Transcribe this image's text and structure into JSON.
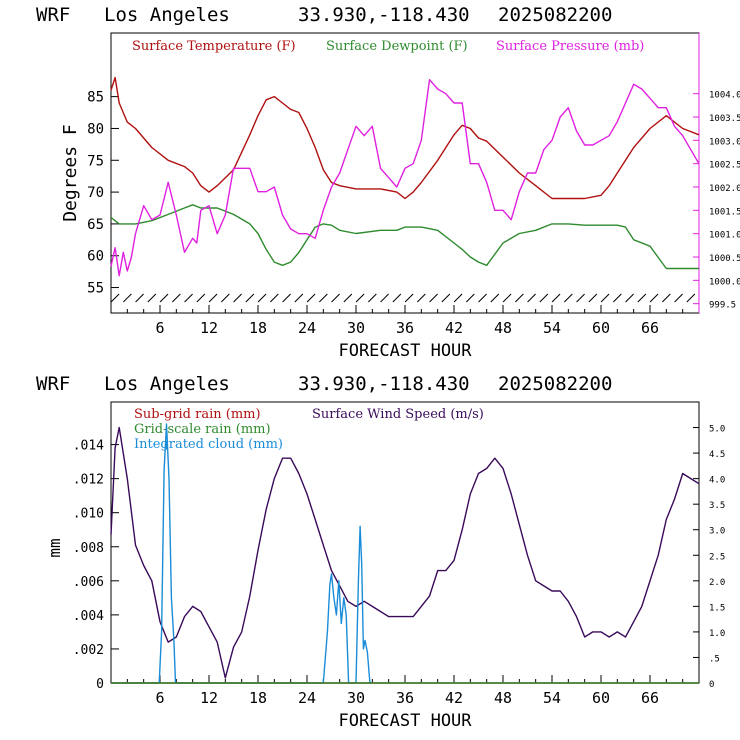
{
  "panels": [
    {
      "title": {
        "model": "WRF",
        "location": "Los Angeles",
        "coords": "33.930,-118.430",
        "run": "2025082200"
      },
      "xlabel": "FORECAST HOUR",
      "ylabel": "Degrees F",
      "legend": [
        {
          "label": "Surface Temperature (F)",
          "color": "#b01010"
        },
        {
          "label": "Surface Dewpoint (F)",
          "color": "#2e8b2e"
        },
        {
          "label": "Surface Pressure (mb)",
          "color": "#e020e0"
        }
      ],
      "y_ticks_left": [
        "55",
        "60",
        "65",
        "70",
        "75",
        "80",
        "85"
      ],
      "y_ticks_right": [
        "999.5",
        "1000.0",
        "1000.5",
        "1001.0",
        "1001.5",
        "1002.0",
        "1002.5",
        "1003.0",
        "1003.5",
        "1004.0"
      ],
      "x_ticks": [
        "6",
        "12",
        "18",
        "24",
        "30",
        "36",
        "42",
        "48",
        "54",
        "60",
        "66"
      ]
    },
    {
      "title": {
        "model": "WRF",
        "location": "Los Angeles",
        "coords": "33.930,-118.430",
        "run": "2025082200"
      },
      "xlabel": "FORECAST HOUR",
      "ylabel": "mm",
      "legend": [
        {
          "label": "Sub-grid rain (mm)",
          "color": "#b01010"
        },
        {
          "label": "Grid-scale rain (mm)",
          "color": "#2e8b2e"
        },
        {
          "label": "Integrated cloud (mm)",
          "color": "#1a8cd8"
        },
        {
          "label": "Surface Wind Speed (m/s)",
          "color": "#3a0a5a"
        }
      ],
      "y_ticks_left": [
        "0",
        ".002",
        ".004",
        ".006",
        ".008",
        ".010",
        ".012",
        ".014"
      ],
      "y_ticks_right": [
        "0",
        ".5",
        "1.0",
        "1.5",
        "2.0",
        "2.5",
        "3.0",
        "3.5",
        "4.0",
        "4.5",
        "5.0"
      ],
      "x_ticks": [
        "6",
        "12",
        "18",
        "24",
        "30",
        "36",
        "42",
        "48",
        "54",
        "60",
        "66"
      ]
    }
  ],
  "chart_data": [
    {
      "type": "line",
      "xlim": [
        0,
        72
      ],
      "ylim": [
        51,
        95
      ],
      "y2lim": [
        999.3,
        1005.3
      ],
      "series": [
        {
          "name": "Surface Temperature (F)",
          "color": "#b01010",
          "axis": "left",
          "x": [
            0,
            0.5,
            1,
            2,
            3,
            5,
            7,
            9,
            10,
            11,
            12,
            13,
            15,
            17,
            18,
            19,
            20,
            21,
            22,
            23,
            24,
            25,
            26,
            27,
            28,
            30,
            33,
            35,
            36,
            37,
            38,
            40,
            42,
            43,
            44,
            45,
            46,
            48,
            50,
            52,
            54,
            56,
            58,
            60,
            61,
            62,
            63,
            64,
            66,
            68,
            70,
            72
          ],
          "y": [
            86,
            88,
            84,
            81,
            80,
            77,
            75,
            74,
            73,
            71,
            70,
            71,
            73.5,
            79,
            82,
            84.5,
            85,
            84,
            83,
            82.5,
            80,
            77,
            73.5,
            71.5,
            71,
            70.5,
            70.5,
            70,
            69,
            70,
            71.5,
            75,
            79,
            80.5,
            80,
            78.5,
            78,
            75.5,
            73,
            71,
            69,
            69,
            69,
            69.5,
            71,
            73,
            75,
            77,
            80,
            82,
            80,
            79
          ]
        },
        {
          "name": "Surface Dewpoint (F)",
          "color": "#2e8b2e",
          "axis": "left",
          "x": [
            0,
            0.5,
            1,
            2,
            3,
            5,
            7,
            9,
            10,
            11,
            12,
            13,
            15,
            17,
            18,
            19,
            20,
            21,
            22,
            23,
            24,
            25,
            26,
            27,
            28,
            30,
            33,
            35,
            36,
            37,
            38,
            40,
            42,
            43,
            44,
            45,
            46,
            48,
            50,
            52,
            54,
            56,
            58,
            60,
            61,
            62,
            63,
            64,
            66,
            68,
            70,
            72
          ],
          "y": [
            66,
            65.5,
            65,
            65,
            65,
            65.5,
            66.5,
            67.5,
            68,
            67.5,
            67.5,
            67.5,
            66.5,
            65,
            63.5,
            61,
            59,
            58.5,
            59,
            60.5,
            62.5,
            64.5,
            65,
            64.8,
            64,
            63.5,
            64,
            64,
            64.5,
            64.5,
            64.5,
            64,
            62,
            61,
            59.8,
            59,
            58.5,
            62,
            63.5,
            64,
            65,
            65,
            64.8,
            64.8,
            64.8,
            64.8,
            64.5,
            62.5,
            61.5,
            58,
            58,
            58
          ]
        },
        {
          "name": "Surface Pressure (mb)",
          "color": "#e020e0",
          "axis": "right",
          "x": [
            0,
            0.5,
            1,
            1.5,
            2,
            2.5,
            3,
            4,
            5,
            6,
            7,
            8,
            9,
            10,
            10.5,
            11,
            12,
            13,
            14,
            15,
            16,
            17,
            18,
            19,
            20,
            21,
            22,
            23,
            24,
            25,
            26,
            27,
            28,
            29,
            30,
            31,
            32,
            33,
            34,
            35,
            36,
            37,
            38,
            39,
            40,
            41,
            42,
            43,
            44,
            45,
            46,
            47,
            48,
            49,
            50,
            51,
            52,
            53,
            54,
            55,
            56,
            57,
            58,
            59,
            60,
            61,
            62,
            63,
            64,
            65,
            66,
            67,
            68,
            69,
            70,
            71,
            72
          ],
          "y": [
            1000.3,
            1000.7,
            1000.1,
            1000.6,
            1000.2,
            1000.5,
            1001.0,
            1001.6,
            1001.3,
            1001.4,
            1002.1,
            1001.4,
            1000.6,
            1000.9,
            1000.8,
            1001.5,
            1001.6,
            1001.0,
            1001.4,
            1002.4,
            1002.4,
            1002.4,
            1001.9,
            1001.9,
            1002.0,
            1001.4,
            1001.1,
            1001.0,
            1001.0,
            1000.9,
            1001.5,
            1002.0,
            1002.3,
            1002.8,
            1003.3,
            1003.1,
            1003.3,
            1002.4,
            1002.2,
            1002.0,
            1002.4,
            1002.5,
            1003.0,
            1004.3,
            1004.1,
            1004.0,
            1003.8,
            1003.8,
            1002.5,
            1002.5,
            1002.1,
            1001.5,
            1001.5,
            1001.3,
            1001.9,
            1002.3,
            1002.3,
            1002.8,
            1003.0,
            1003.5,
            1003.7,
            1003.2,
            1002.9,
            1002.9,
            1003.0,
            1003.1,
            1003.4,
            1003.8,
            1004.2,
            1004.1,
            1003.9,
            1003.7,
            1003.7,
            1003.3,
            1003.1,
            1002.8,
            1002.5
          ]
        }
      ]
    },
    {
      "type": "line",
      "xlim": [
        0,
        72
      ],
      "ylim": [
        0,
        0.0165
      ],
      "y2lim": [
        0,
        5.5
      ],
      "series": [
        {
          "name": "Surface Wind Speed (m/s)",
          "color": "#3a0a5a",
          "axis": "right",
          "x": [
            0,
            0.5,
            1,
            2,
            3,
            4,
            5,
            6,
            7,
            8,
            9,
            10,
            11,
            12,
            13,
            14,
            15,
            16,
            17,
            18,
            19,
            20,
            21,
            22,
            23,
            24,
            25,
            26,
            27,
            28,
            29,
            30,
            31,
            32,
            33,
            34,
            35,
            36,
            37,
            38,
            39,
            40,
            41,
            42,
            43,
            44,
            45,
            46,
            47,
            48,
            49,
            50,
            51,
            52,
            53,
            54,
            55,
            56,
            57,
            58,
            59,
            60,
            61,
            62,
            63,
            64,
            65,
            66,
            67,
            68,
            69,
            70,
            71,
            72
          ],
          "y": [
            2.9,
            4.6,
            5.0,
            4.0,
            2.7,
            2.3,
            2.0,
            1.2,
            0.8,
            0.9,
            1.3,
            1.5,
            1.4,
            1.1,
            0.8,
            0.1,
            0.7,
            1.0,
            1.7,
            2.6,
            3.4,
            4.0,
            4.4,
            4.4,
            4.1,
            3.7,
            3.2,
            2.7,
            2.2,
            1.9,
            1.6,
            1.5,
            1.6,
            1.5,
            1.4,
            1.3,
            1.3,
            1.3,
            1.3,
            1.5,
            1.7,
            2.2,
            2.2,
            2.4,
            3.0,
            3.7,
            4.1,
            4.2,
            4.4,
            4.2,
            3.7,
            3.1,
            2.5,
            2.0,
            1.9,
            1.8,
            1.8,
            1.6,
            1.3,
            0.9,
            1.0,
            1.0,
            0.9,
            1.0,
            0.9,
            1.2,
            1.5,
            2.0,
            2.5,
            3.2,
            3.6,
            4.1,
            4.0,
            3.9
          ]
        },
        {
          "name": "Integrated cloud (mm)",
          "color": "#1a8cd8",
          "axis": "left",
          "x": [
            0,
            5.9,
            6.2,
            6.5,
            6.8,
            7.1,
            7.4,
            7.7,
            7.9,
            24,
            26.0,
            26.5,
            26.8,
            27.0,
            27.3,
            27.6,
            27.9,
            28.2,
            28.5,
            28.8,
            29.1,
            29.4,
            29.7,
            30.0,
            30.3,
            30.5,
            30.7,
            30.9,
            31.1,
            31.4,
            31.7,
            32
          ],
          "y": [
            0,
            0,
            0.003,
            0.0125,
            0.0152,
            0.012,
            0.005,
            0.0025,
            0,
            0,
            0,
            0.003,
            0.0058,
            0.0064,
            0.005,
            0.004,
            0.006,
            0.0035,
            0.005,
            0.004,
            0,
            0,
            0,
            0,
            0.006,
            0.0092,
            0.007,
            0.002,
            0.0025,
            0.0018,
            0,
            0
          ]
        },
        {
          "name": "Sub-grid rain (mm)",
          "color": "#b01010",
          "axis": "left",
          "x": [
            0,
            72
          ],
          "y": [
            0,
            0
          ]
        },
        {
          "name": "Grid-scale rain (mm)",
          "color": "#2e8b2e",
          "axis": "left",
          "x": [
            0,
            72
          ],
          "y": [
            0,
            0
          ]
        }
      ]
    }
  ]
}
